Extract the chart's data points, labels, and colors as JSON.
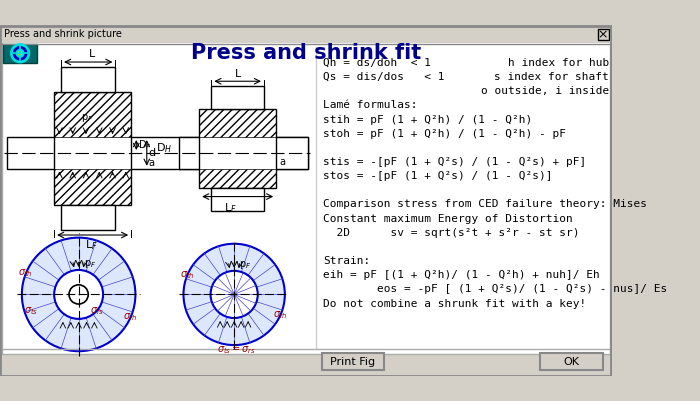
{
  "title": "Press and shrink fit",
  "window_title": "Press and shrink picture",
  "bg_color": "#d4d0c8",
  "title_color": "#00008B",
  "text_color": "#000000",
  "lines": [
    [
      "Qh = ds/doh  < 1",
      "h index for hub"
    ],
    [
      "Qs = dis/dos   < 1",
      "s index for shaft"
    ],
    [
      "",
      "o outside, i inside"
    ],
    [
      "Lamé formulas:",
      ""
    ],
    [
      "stih = pF (1 + Q²h) / (1 - Q²h)",
      ""
    ],
    [
      "stoh = pF (1 + Q²h) / (1 - Q²h) - pF",
      ""
    ],
    [
      "",
      ""
    ],
    [
      "stis = -[pF (1 + Q²s) / (1 - Q²s) + pF]",
      ""
    ],
    [
      "stos = -[pF (1 + Q²s) / (1 - Q²s)]",
      ""
    ],
    [
      "",
      ""
    ],
    [
      "Comparison stress from CED failure theory: Mises",
      ""
    ],
    [
      "Constant maximum Energy of Distortion",
      ""
    ],
    [
      "  2D      sv = sqrt(s²t + s²r - st sr)",
      ""
    ],
    [
      "",
      ""
    ],
    [
      "Strain:",
      ""
    ],
    [
      "eih = pF [(1 + Q²h)/ (1 - Q²h) + nuh]/ Eh",
      ""
    ],
    [
      "        eos = -pF [ (1 + Q²s)/ (1 - Q²s) - nus]/ Es",
      ""
    ],
    [
      "Do not combine a shrunk fit with a key!",
      ""
    ]
  ],
  "button1": "Print Fig",
  "button2": "OK"
}
